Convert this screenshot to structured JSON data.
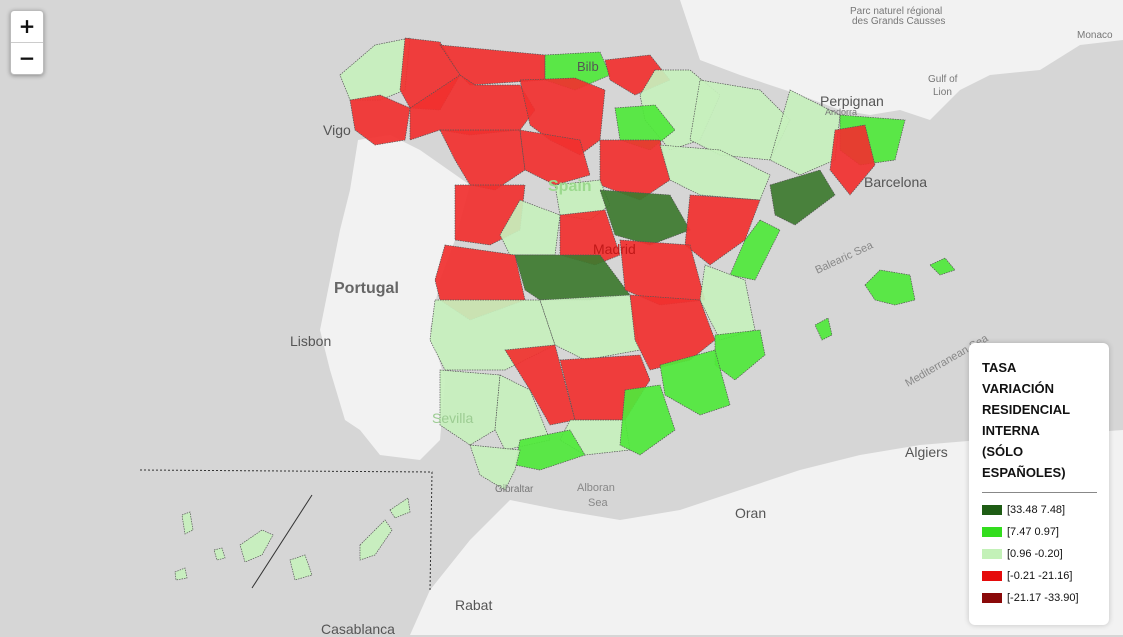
{
  "legend": {
    "title_lines": [
      "TASA",
      "VARIACIÓN",
      "RESIDENCIAL",
      "INTERNA",
      "(SÓLO",
      "ESPAÑOLES)"
    ],
    "items": [
      {
        "label": "[33.48 7.48]",
        "color": "#1e5c14"
      },
      {
        "label": "[7.47 0.97]",
        "color": "#33dd1e"
      },
      {
        "label": "[0.96 -0.20]",
        "color": "#c3f1b8"
      },
      {
        "label": "[-0.21 -21.16]",
        "color": "#e50b0b"
      },
      {
        "label": "[-21.17 -33.90]",
        "color": "#8a0909"
      }
    ]
  },
  "zoom": {
    "in_label": "+",
    "out_label": "−"
  },
  "place_labels": {
    "vigo": "Vigo",
    "portugal": "Portugal",
    "lisbon": "Lisbon",
    "seville": "Sevilla",
    "madrid": "Madrid",
    "spain": "Spain",
    "bilbao": "Bilb",
    "barcelona": "Barcelona",
    "perpignan": "Perpignan",
    "andorra": "Andorra",
    "algiers": "Algiers",
    "oran": "Oran",
    "rabat": "Rabat",
    "casablanca": "Casablanca",
    "gibraltar": "Gibraltar",
    "monaco": "Monaco",
    "parc": "Parc naturel régional",
    "parc2": "des Grands Causses",
    "gulf": "Gulf of",
    "gulf2": "Lion",
    "balearic_sea": "Balearic Sea",
    "alboran": "Alboran",
    "alboran2": "Sea",
    "med": "Mediterranean Sea"
  },
  "colors": {
    "dark_green": "#3d7a2f",
    "green": "#4fe83b",
    "light_green": "#c7f0bd",
    "red": "#f1302f",
    "sea": "#d6d6d6",
    "land": "#f2f2f2"
  }
}
